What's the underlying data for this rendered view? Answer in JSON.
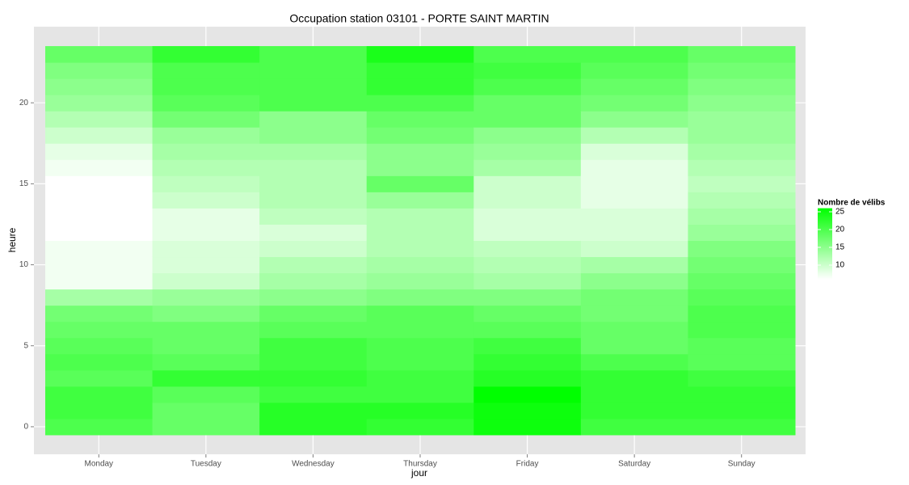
{
  "chart_data": {
    "type": "heatmap",
    "title": "Occupation station 03101 - PORTE SAINT MARTIN",
    "x_label": "jour",
    "y_label": "heure",
    "categories": [
      "Monday",
      "Tuesday",
      "Wednesday",
      "Thursday",
      "Friday",
      "Saturday",
      "Sunday"
    ],
    "y": [
      0,
      1,
      2,
      3,
      4,
      5,
      6,
      7,
      8,
      9,
      10,
      11,
      12,
      13,
      14,
      15,
      16,
      17,
      18,
      19,
      20,
      21,
      22,
      23
    ],
    "values": [
      [
        20,
        21,
        21,
        19,
        20,
        19,
        18,
        17,
        13,
        7,
        7,
        7,
        6,
        6,
        6,
        6,
        7,
        8,
        10,
        12,
        14,
        15,
        16,
        18
      ],
      [
        18,
        18,
        19,
        22,
        19,
        18,
        18,
        16,
        14,
        10,
        9,
        9,
        8,
        8,
        10,
        11,
        12,
        13,
        14,
        17,
        19,
        20,
        20,
        22
      ],
      [
        23,
        23,
        21,
        22,
        21,
        21,
        19,
        18,
        15,
        13,
        12,
        10,
        9,
        11,
        12,
        12,
        12,
        13,
        15,
        15,
        20,
        20,
        20,
        20
      ],
      [
        22,
        23,
        21,
        21,
        20,
        20,
        19,
        19,
        16,
        14,
        13,
        12,
        12,
        12,
        14,
        18,
        15,
        15,
        17,
        18,
        20,
        22,
        22,
        24
      ],
      [
        25,
        25,
        26,
        23,
        22,
        21,
        19,
        18,
        16,
        13,
        12,
        11,
        9,
        9,
        10,
        10,
        13,
        14,
        15,
        18,
        18,
        20,
        21,
        20
      ],
      [
        21,
        22,
        22,
        22,
        20,
        18,
        18,
        17,
        17,
        15,
        13,
        10,
        9,
        9,
        8,
        8,
        8,
        9,
        12,
        15,
        17,
        18,
        19,
        20
      ],
      [
        21,
        22,
        22,
        21,
        19,
        19,
        20,
        20,
        19,
        18,
        17,
        16,
        14,
        13,
        12,
        11,
        12,
        13,
        14,
        14,
        15,
        16,
        17,
        18
      ]
    ],
    "ylim": [
      -1.7,
      24.7
    ],
    "yticks": [
      0,
      5,
      10,
      15,
      20
    ],
    "grid": true,
    "legend_title": "Nombre de vélibs",
    "colorlim": [
      6,
      26
    ],
    "colorticks": [
      10,
      15,
      20,
      25
    ],
    "color_low": "#ffffff",
    "color_high": "#00ff00"
  }
}
